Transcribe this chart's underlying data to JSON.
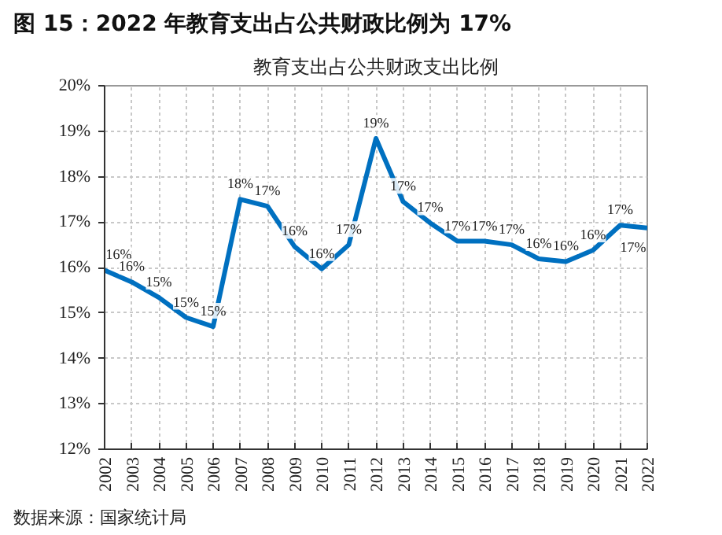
{
  "chart_data": {
    "type": "line",
    "title": "图 15：2022 年教育支出占公共财政比例为 17%",
    "subtitle": "教育支出占公共财政支出比例",
    "x": [
      2002,
      2003,
      2004,
      2005,
      2006,
      2007,
      2008,
      2009,
      2010,
      2011,
      2012,
      2013,
      2014,
      2015,
      2016,
      2017,
      2018,
      2019,
      2020,
      2021,
      2022
    ],
    "series": [
      {
        "color": "#0070c0",
        "values": [
          15.94,
          15.68,
          15.34,
          14.9,
          14.7,
          17.5,
          17.35,
          16.46,
          15.97,
          16.5,
          18.84,
          17.45,
          16.98,
          16.58,
          16.58,
          16.5,
          16.19,
          16.13,
          16.38,
          16.93,
          16.87
        ],
        "value_labels": [
          "16%",
          "16%",
          "15%",
          "15%",
          "15%",
          "18%",
          "17%",
          "16%",
          "16%",
          "17%",
          "19%",
          "17%",
          "17%",
          "17%",
          "17%",
          "17%",
          "16%",
          "16%",
          "16%",
          "17%",
          "17%"
        ]
      }
    ],
    "xlim": [
      2002,
      2022
    ],
    "xticks": [
      2002,
      2003,
      2004,
      2005,
      2006,
      2007,
      2008,
      2009,
      2010,
      2011,
      2012,
      2013,
      2014,
      2015,
      2016,
      2017,
      2018,
      2019,
      2020,
      2021,
      2022
    ],
    "ylim": [
      12,
      20
    ],
    "yticks": [
      {
        "value": 12,
        "label": "12%"
      },
      {
        "value": 13,
        "label": "13%"
      },
      {
        "value": 14,
        "label": "14%"
      },
      {
        "value": 15,
        "label": "15%"
      },
      {
        "value": 16,
        "label": "16%"
      },
      {
        "value": 17,
        "label": "17%"
      },
      {
        "value": 18,
        "label": "18%"
      },
      {
        "value": 19,
        "label": "19%"
      },
      {
        "value": 20,
        "label": "20%"
      }
    ],
    "grid": true,
    "marker": "none",
    "line_style": "solid",
    "annotations": [
      "数据来源：国家统计局"
    ]
  }
}
